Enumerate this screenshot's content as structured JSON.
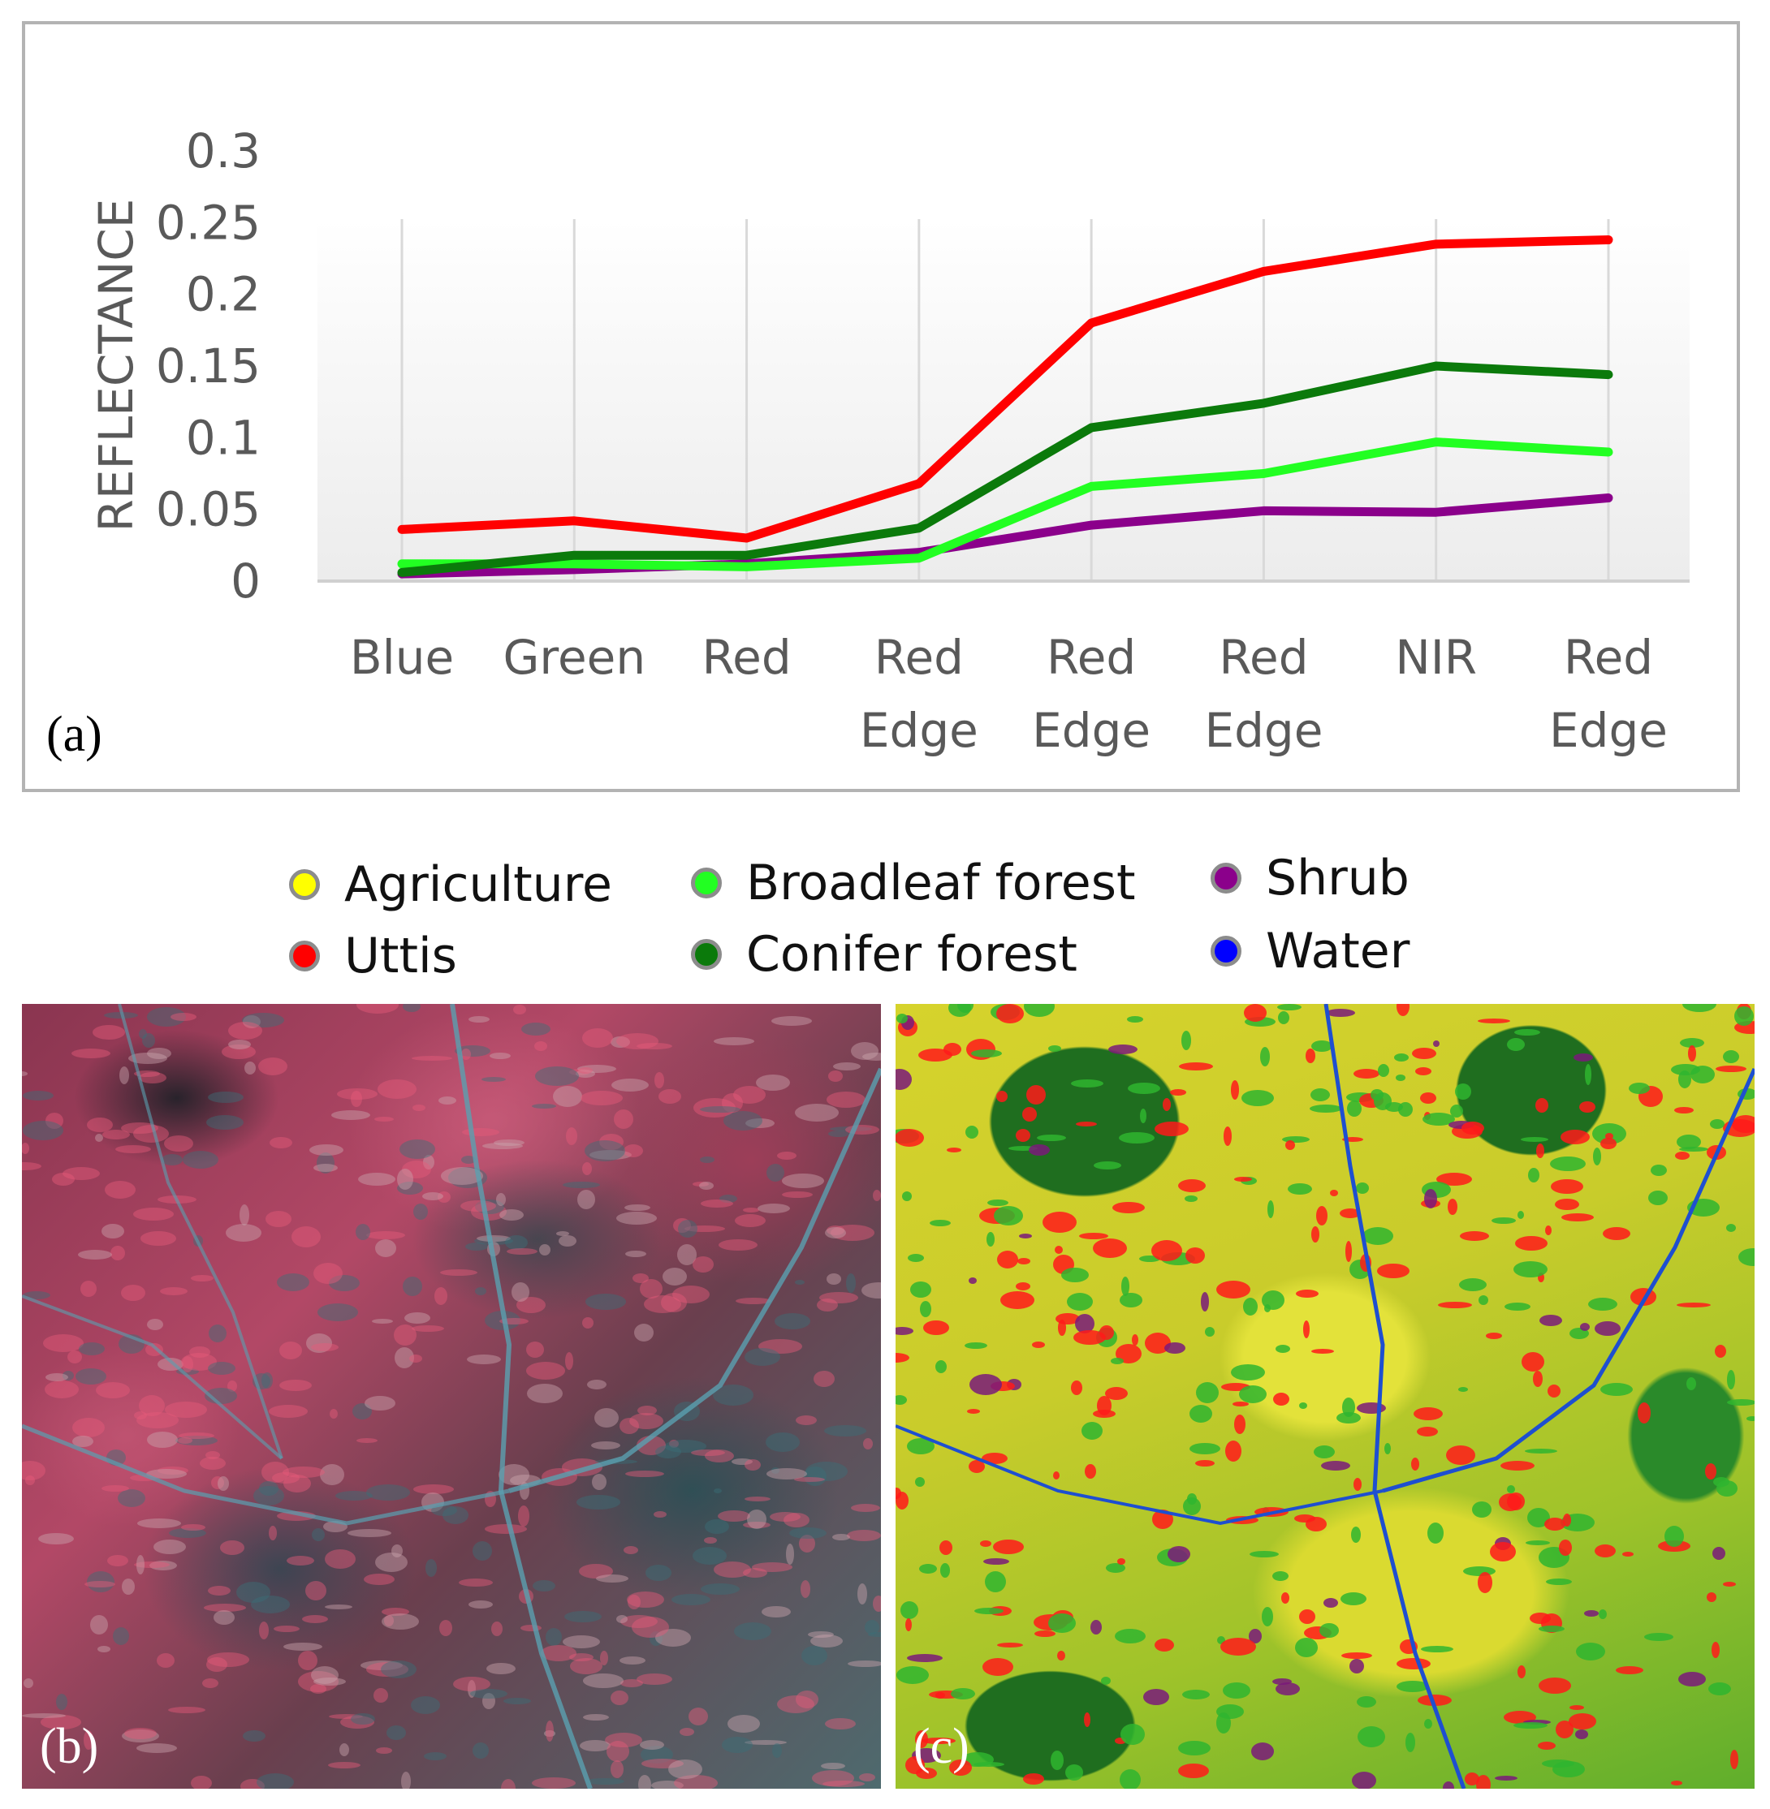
{
  "chart_data": {
    "type": "line",
    "categories": [
      [
        "Blue"
      ],
      [
        "Green"
      ],
      [
        "Red"
      ],
      [
        "Red",
        "Edge"
      ],
      [
        "Red",
        "Edge"
      ],
      [
        "Red",
        "Edge"
      ],
      [
        "NIR"
      ],
      [
        "Red",
        "Edge"
      ]
    ],
    "series": [
      {
        "name": "Uttis",
        "color": "#ff0000",
        "values": [
          0.036,
          0.042,
          0.03,
          0.068,
          0.18,
          0.216,
          0.235,
          0.238
        ]
      },
      {
        "name": "Conifer forest",
        "color": "#0b7a0b",
        "values": [
          0.006,
          0.018,
          0.018,
          0.037,
          0.107,
          0.124,
          0.15,
          0.144
        ]
      },
      {
        "name": "Broadleaf forest",
        "color": "#22ff22",
        "values": [
          0.012,
          0.012,
          0.01,
          0.016,
          0.066,
          0.075,
          0.097,
          0.09
        ]
      },
      {
        "name": "Shrub",
        "color": "#8b008b",
        "values": [
          0.005,
          0.008,
          0.012,
          0.02,
          0.039,
          0.049,
          0.048,
          0.058
        ]
      }
    ],
    "yticks": [
      "0",
      "0.05",
      "0.1",
      "0.15",
      "0.2",
      "0.25",
      "0.3"
    ],
    "ylim": [
      0,
      0.3
    ],
    "ylabel": "REFLECTANCE",
    "title": "",
    "grid": "vertical"
  },
  "legend": [
    {
      "label": "Agriculture",
      "color": "#ffff00"
    },
    {
      "label": "Uttis",
      "color": "#ff0000"
    },
    {
      "label": "Broadleaf forest",
      "color": "#22ff22"
    },
    {
      "label": "Conifer forest",
      "color": "#0b7a0b"
    },
    {
      "label": "Shrub",
      "color": "#8b008b"
    },
    {
      "label": "Water",
      "color": "#0000ff"
    }
  ],
  "panel_labels": {
    "a": "(a)",
    "b": "(b)",
    "c": "(c)"
  }
}
